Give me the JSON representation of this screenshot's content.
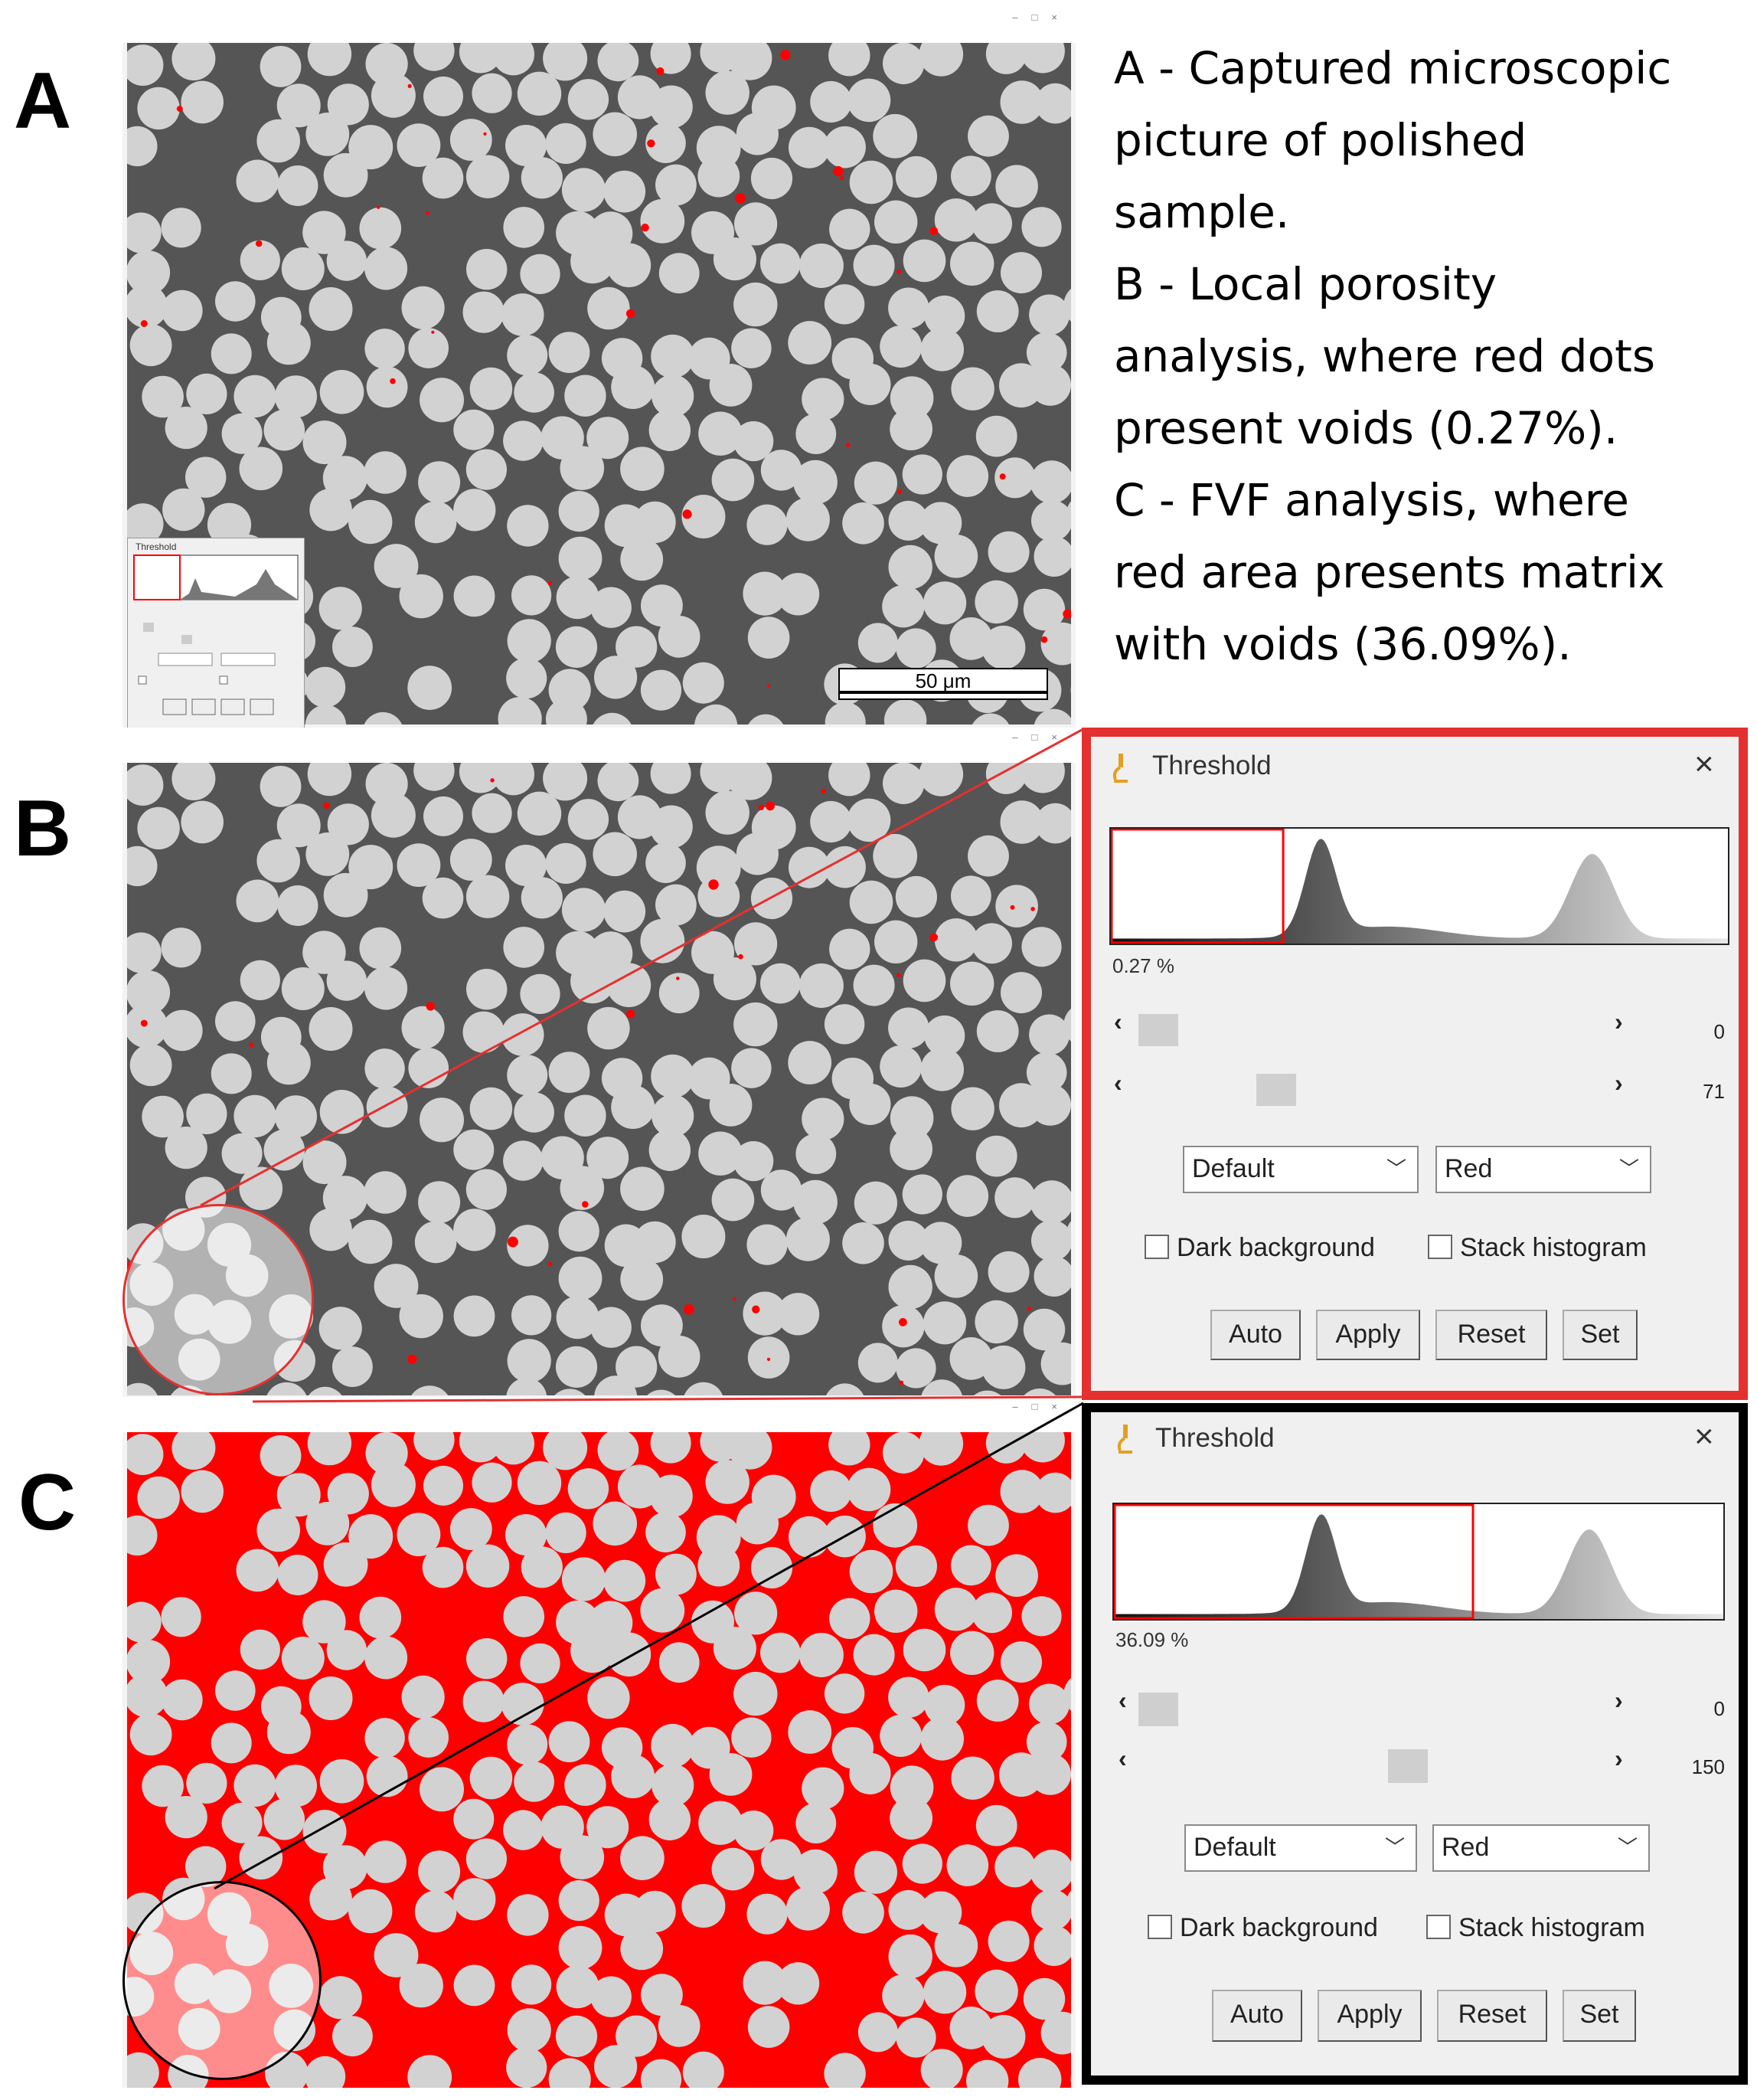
{
  "panel_labels": {
    "a": "A",
    "b": "B",
    "c": "C"
  },
  "caption": {
    "lines": [
      "A - Captured microscopic",
      "picture of polished",
      "sample.",
      "B - Local porosity",
      "analysis, where red dots",
      "present voids (0.27%).",
      "C - FVF analysis, where",
      "red area presents matrix",
      "with voids (36.09%)."
    ]
  },
  "scale_bar": {
    "label": "50 μm"
  },
  "colors": {
    "threshold_red": "#ff0000",
    "matrix_gray": "#555555",
    "fiber_gray": "#d2d2d2",
    "panel_b_frame": "#e53030",
    "panel_c_frame": "#000000"
  },
  "mini_dialog": {
    "title": "Threshold"
  },
  "dialog_b": {
    "title": "Threshold",
    "close_icon": "close-icon",
    "percent": "0.27 %",
    "min_value": "0",
    "max_value": "71",
    "min_fraction": 0.0,
    "max_fraction": 0.278,
    "method": "Default",
    "mode": "Red",
    "dark_background": "Dark background",
    "stack_histogram": "Stack histogram",
    "buttons": [
      "Auto",
      "Apply",
      "Reset",
      "Set"
    ]
  },
  "dialog_c": {
    "title": "Threshold",
    "close_icon": "close-icon",
    "percent": "36.09 %",
    "min_value": "0",
    "max_value": "150",
    "min_fraction": 0.0,
    "max_fraction": 0.588,
    "method": "Default",
    "mode": "Red",
    "dark_background": "Dark background",
    "stack_histogram": "Stack histogram",
    "buttons": [
      "Auto",
      "Apply",
      "Reset",
      "Set"
    ]
  }
}
